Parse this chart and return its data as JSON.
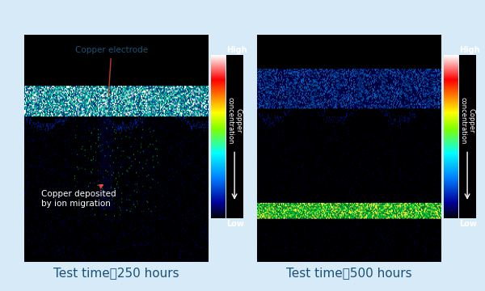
{
  "background_color": "#d6eaf8",
  "fig_width": 6.0,
  "fig_height": 3.6,
  "title1": "Test time：250 hours",
  "title2": "Test time：500 hours",
  "annotation1_text": "Copper electrode",
  "annotation2_text": "Copper deposited\nby ion migration",
  "colorbar_label_high": "High",
  "colorbar_label_low": "Low",
  "colorbar_label_mid": "Copper\nconcentration",
  "title_color": "#1a5276",
  "title_fontsize": 11
}
